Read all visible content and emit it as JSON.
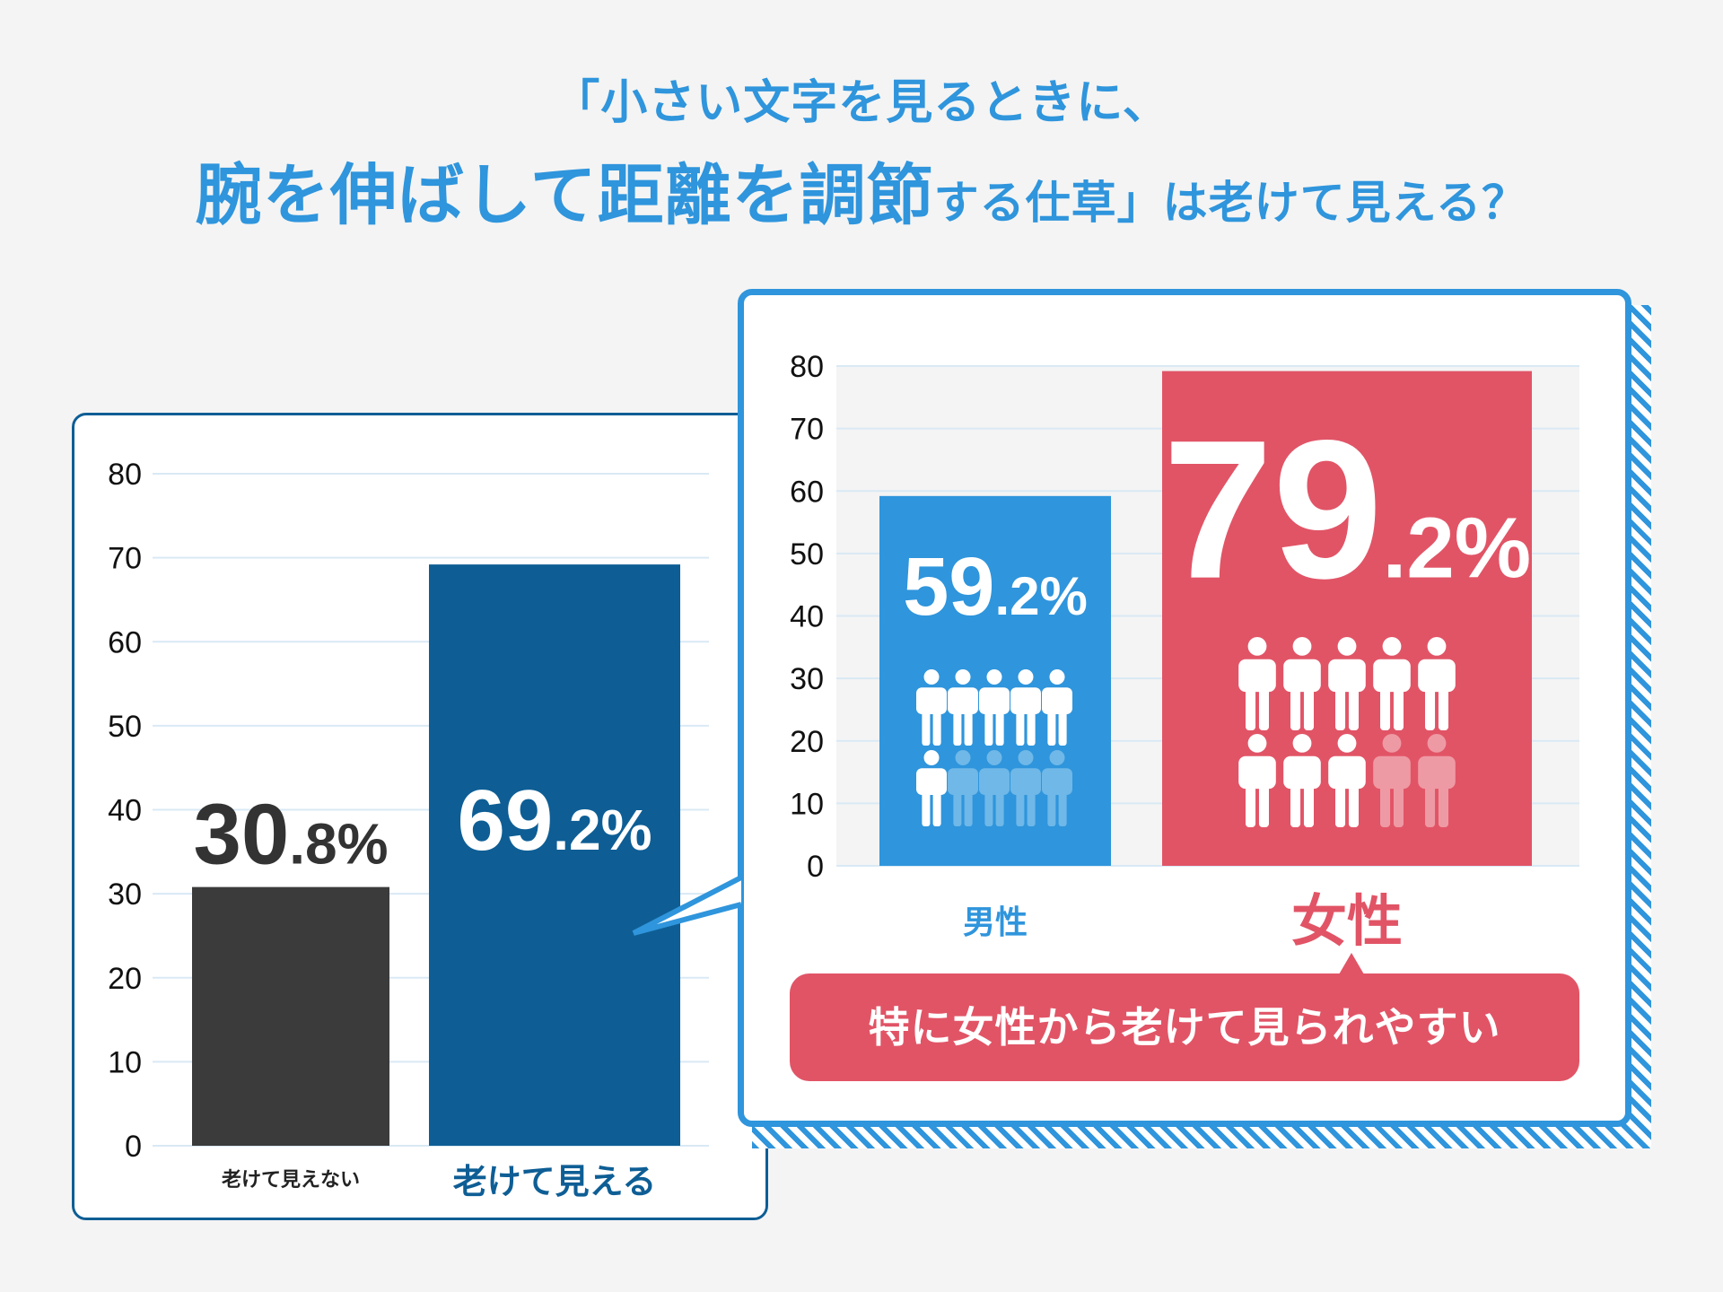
{
  "title": {
    "line1": "「小さい文字を見るときに、",
    "line2_big": "腕を伸ばして距離を調節",
    "line2_small": "する仕草」は老けて見える？"
  },
  "chart_data": [
    {
      "type": "bar",
      "categories": [
        "老けて見えない",
        "老けて見える"
      ],
      "values": [
        30.8,
        69.2
      ],
      "value_labels": [
        {
          "int": "30",
          "dec": ".8%"
        },
        {
          "int": "69",
          "dec": ".2%"
        }
      ],
      "ylim": [
        0,
        80
      ],
      "yticks": [
        0,
        10,
        20,
        30,
        40,
        50,
        60,
        70,
        80
      ],
      "grid": true,
      "colors": [
        "#3b3b3b",
        "#0e5e95"
      ],
      "label_colors": [
        "#222222",
        "#0e5e95"
      ]
    },
    {
      "type": "bar",
      "categories": [
        "男性",
        "女性"
      ],
      "values": [
        59.2,
        79.2
      ],
      "value_labels": [
        {
          "int": "59",
          "dec": ".2%"
        },
        {
          "int": "79",
          "dec": ".2%"
        }
      ],
      "ylim": [
        0,
        80
      ],
      "yticks": [
        0,
        10,
        20,
        30,
        40,
        50,
        60,
        70,
        80
      ],
      "grid": true,
      "colors": [
        "#2f95dc",
        "#e15466"
      ],
      "label_colors": [
        "#2f95dc",
        "#e15466"
      ],
      "pictograms": [
        {
          "icons": 10,
          "filled": 6,
          "faded_color": "#6fb8e8"
        },
        {
          "icons": 10,
          "filled": 8,
          "faded_color": "#ee9aa4"
        }
      ]
    }
  ],
  "callout": {
    "text": "特に女性から老けて見られやすい"
  },
  "colors": {
    "accent": "#2f95dc",
    "dark_blue": "#0e5e95",
    "red": "#e15466",
    "dark": "#3b3b3b"
  }
}
